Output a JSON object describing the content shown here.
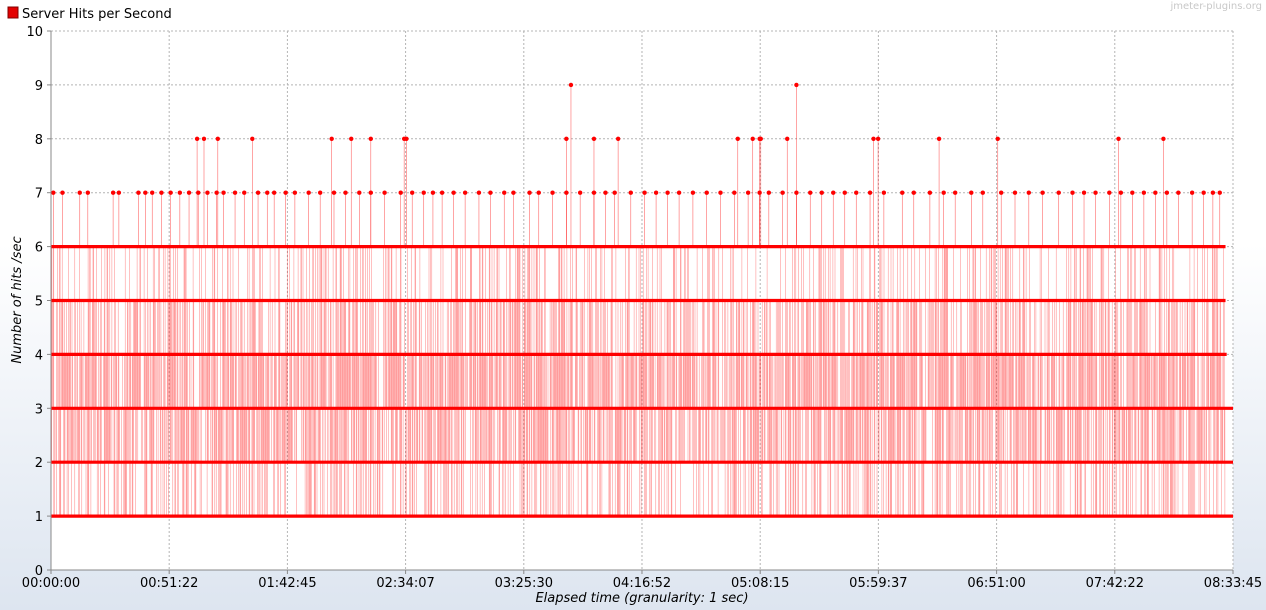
{
  "watermark": "jmeter-plugins.org",
  "colors": {
    "series": "#ff0000",
    "grid": "#b4b4b4",
    "plot_bg": "#ffffff"
  },
  "chart_data": {
    "type": "line",
    "title": "",
    "xlabel": "Elapsed time (granularity: 1 sec)",
    "ylabel": "Number of hits /sec",
    "ylim": [
      0,
      10
    ],
    "xlim": [
      "00:00:00",
      "08:33:45"
    ],
    "grid": true,
    "legend": "top-left",
    "y_ticks": [
      "0",
      "1",
      "2",
      "3",
      "4",
      "5",
      "6",
      "7",
      "8",
      "9",
      "10"
    ],
    "x_ticks": [
      "00:00:00",
      "00:51:22",
      "01:42:45",
      "02:34:07",
      "03:25:30",
      "04:16:52",
      "05:08:15",
      "05:59:37",
      "06:51:00",
      "07:42:22",
      "08:33:45"
    ],
    "series": [
      {
        "name": "Server Hits per Second",
        "color": "#ff0000",
        "range_by_value": {
          "1": [
            "00:00:00",
            "08:33:45"
          ],
          "2": [
            "00:00:00",
            "08:33:45"
          ],
          "3": [
            "00:00:00",
            "08:33:45"
          ],
          "4": [
            "00:00:00",
            "08:31:00"
          ],
          "5": [
            "00:00:00",
            "08:30:30"
          ],
          "6": [
            "00:00:00",
            "08:30:30"
          ]
        },
        "points_at_7": [
          "00:01:00",
          "00:05:00",
          "00:12:30",
          "00:16:00",
          "00:27:00",
          "00:29:30",
          "00:38:00",
          "00:41:00",
          "00:44:00",
          "00:48:00",
          "00:52:00",
          "00:56:00",
          "01:00:00",
          "01:04:00",
          "01:08:00",
          "01:12:00",
          "01:15:00",
          "01:20:00",
          "01:24:00",
          "01:30:00",
          "01:34:00",
          "01:37:00",
          "01:42:00",
          "01:46:00",
          "01:52:00",
          "01:57:00",
          "02:03:00",
          "02:08:00",
          "02:14:00",
          "02:19:00",
          "02:25:00",
          "02:32:00",
          "02:37:00",
          "02:42:00",
          "02:46:00",
          "02:50:00",
          "02:55:00",
          "03:00:00",
          "03:06:00",
          "03:11:00",
          "03:17:00",
          "03:21:00",
          "03:28:00",
          "03:32:00",
          "03:38:00",
          "03:44:00",
          "03:50:00",
          "03:56:00",
          "04:01:00",
          "04:05:00",
          "04:12:00",
          "04:18:00",
          "04:23:00",
          "04:28:00",
          "04:33:00",
          "04:39:00",
          "04:45:00",
          "04:51:00",
          "04:57:00",
          "05:03:00",
          "05:08:00",
          "05:12:00",
          "05:18:00",
          "05:24:00",
          "05:30:00",
          "05:35:00",
          "05:40:00",
          "05:45:00",
          "05:50:00",
          "05:56:00",
          "06:02:00",
          "06:10:00",
          "06:15:00",
          "06:22:00",
          "06:28:00",
          "06:33:00",
          "06:40:00",
          "06:45:00",
          "06:53:00",
          "06:59:00",
          "07:05:00",
          "07:11:00",
          "07:18:00",
          "07:24:00",
          "07:29:00",
          "07:34:00",
          "07:40:00",
          "07:45:00",
          "07:50:00",
          "07:55:00",
          "08:00:00",
          "08:05:00",
          "08:10:00",
          "08:16:00",
          "08:21:00",
          "08:25:00",
          "08:28:00"
        ],
        "points_at_8": [
          "01:03:30",
          "01:06:30",
          "01:12:30",
          "01:27:30",
          "02:02:00",
          "02:10:30",
          "02:19:00",
          "02:33:30",
          "02:34:30",
          "03:44:00",
          "03:56:00",
          "04:06:30",
          "04:58:30",
          "05:05:00",
          "05:08:00",
          "05:08:30",
          "05:20:00",
          "05:57:30",
          "05:59:30",
          "06:26:00",
          "06:51:30",
          "07:44:00",
          "08:03:30"
        ],
        "points_at_9": [
          "03:46:00",
          "05:24:00"
        ]
      }
    ]
  }
}
